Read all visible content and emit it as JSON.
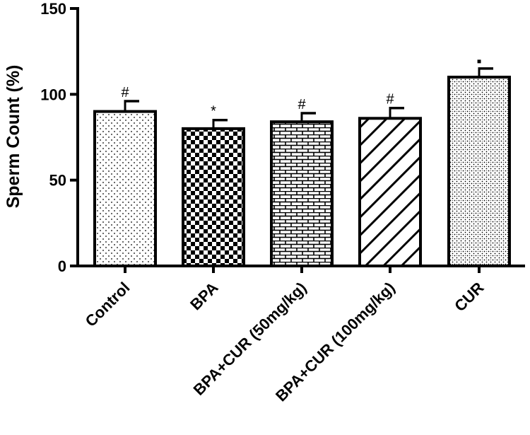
{
  "chart_data": {
    "type": "bar",
    "ylabel": "Sperm Count (%)",
    "xlabel": "",
    "ylim": [
      0,
      150
    ],
    "yticks": [
      0,
      50,
      100,
      150
    ],
    "categories": [
      "Control",
      "BPA",
      "BPA+CUR (50mg/kg)",
      "BPA+CUR (100mg/kg)",
      "CUR"
    ],
    "values": [
      90,
      80,
      84,
      86,
      110
    ],
    "errors": [
      6,
      5,
      5,
      6,
      5
    ],
    "annotations": [
      "#",
      "*",
      "#",
      "#",
      "▪"
    ],
    "patterns": [
      "dots",
      "checker",
      "brick",
      "diagonal-lines",
      "dense-dots"
    ],
    "colors": {
      "bar_stroke": "#000000",
      "bar_fill": "#ffffff"
    },
    "grid": false,
    "legend": "none"
  }
}
